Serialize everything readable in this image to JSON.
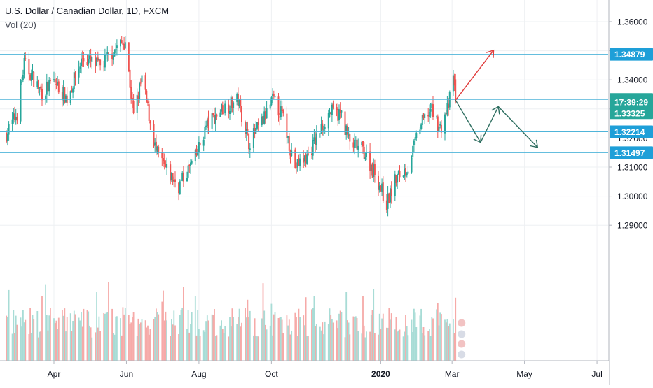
{
  "header": {
    "symbol_title": "U.S. Dollar / Canadian Dollar, 1D, FXCM",
    "indicator": "Vol (20)"
  },
  "colors": {
    "up": "#26a69a",
    "down": "#ef5350",
    "vol_up": "#a8dcd6",
    "vol_down": "#f6aaa8",
    "level_line": "#4fb4d9",
    "level_label_bg": "#1e9fd8",
    "price_label_bg": "#26a69a",
    "arrow_up": "#e03c3c",
    "arrow_down": "#2e6e60"
  },
  "chart_data": {
    "type": "candlestick",
    "ylim": [
      1.29,
      1.3658
    ],
    "y_ticks": [
      "1.36000",
      "1.35000",
      "1.34000",
      "1.33000",
      "1.32000",
      "1.31000",
      "1.30000",
      "1.29000"
    ],
    "x_ticks": [
      "Apr",
      "Jun",
      "Aug",
      "Oct",
      "2020",
      "Mar",
      "May",
      "Jul"
    ],
    "series_anchors": [
      {
        "date": "2019-02-20",
        "close": 1.3215
      },
      {
        "date": "2019-03-01",
        "close": 1.3285
      },
      {
        "date": "2019-03-07",
        "close": 1.3455
      },
      {
        "date": "2019-03-22",
        "close": 1.3355
      },
      {
        "date": "2019-04-01",
        "close": 1.3395
      },
      {
        "date": "2019-04-12",
        "close": 1.3335
      },
      {
        "date": "2019-04-25",
        "close": 1.3475
      },
      {
        "date": "2019-05-10",
        "close": 1.3445
      },
      {
        "date": "2019-05-22",
        "close": 1.3505
      },
      {
        "date": "2019-05-31",
        "close": 1.3535
      },
      {
        "date": "2019-06-07",
        "close": 1.3275
      },
      {
        "date": "2019-06-14",
        "close": 1.3405
      },
      {
        "date": "2019-06-26",
        "close": 1.315
      },
      {
        "date": "2019-07-05",
        "close": 1.3085
      },
      {
        "date": "2019-07-15",
        "close": 1.3035
      },
      {
        "date": "2019-07-30",
        "close": 1.314
      },
      {
        "date": "2019-08-07",
        "close": 1.324
      },
      {
        "date": "2019-08-20",
        "close": 1.33
      },
      {
        "date": "2019-09-03",
        "close": 1.333
      },
      {
        "date": "2019-09-12",
        "close": 1.3185
      },
      {
        "date": "2019-09-24",
        "close": 1.326
      },
      {
        "date": "2019-10-02",
        "close": 1.333
      },
      {
        "date": "2019-10-10",
        "close": 1.328
      },
      {
        "date": "2019-10-21",
        "close": 1.31
      },
      {
        "date": "2019-11-01",
        "close": 1.314
      },
      {
        "date": "2019-11-08",
        "close": 1.32
      },
      {
        "date": "2019-11-19",
        "close": 1.329
      },
      {
        "date": "2019-11-29",
        "close": 1.328
      },
      {
        "date": "2019-12-06",
        "close": 1.318
      },
      {
        "date": "2019-12-17",
        "close": 1.316
      },
      {
        "date": "2019-12-27",
        "close": 1.308
      },
      {
        "date": "2020-01-06",
        "close": 1.2975
      },
      {
        "date": "2020-01-14",
        "close": 1.306
      },
      {
        "date": "2020-01-24",
        "close": 1.31
      },
      {
        "date": "2020-02-03",
        "close": 1.324
      },
      {
        "date": "2020-02-12",
        "close": 1.33
      },
      {
        "date": "2020-02-20",
        "close": 1.323
      },
      {
        "date": "2020-02-27",
        "close": 1.331
      },
      {
        "date": "2020-03-02",
        "close": 1.341
      },
      {
        "date": "2020-03-04",
        "close": 1.3334
      }
    ],
    "levels": [
      {
        "value": 1.34879,
        "label": "1.34879"
      },
      {
        "value": 1.33327,
        "label": "1.33327"
      },
      {
        "value": 1.32214,
        "label": "1.32214"
      },
      {
        "value": 1.31497,
        "label": "1.31497"
      }
    ],
    "last_price": {
      "value": 1.33325,
      "label": "1.33325",
      "countdown": "17:39:29"
    },
    "drawn_projections": [
      {
        "color_key": "arrow_up",
        "points": [
          [
            "2020-03-04",
            1.333
          ],
          [
            "2020-04-05",
            1.3502
          ]
        ]
      },
      {
        "color_key": "arrow_down",
        "points": [
          [
            "2020-03-04",
            1.333
          ],
          [
            "2020-03-25",
            1.3185
          ],
          [
            "2020-04-09",
            1.3308
          ],
          [
            "2020-05-12",
            1.3168
          ]
        ]
      }
    ]
  }
}
